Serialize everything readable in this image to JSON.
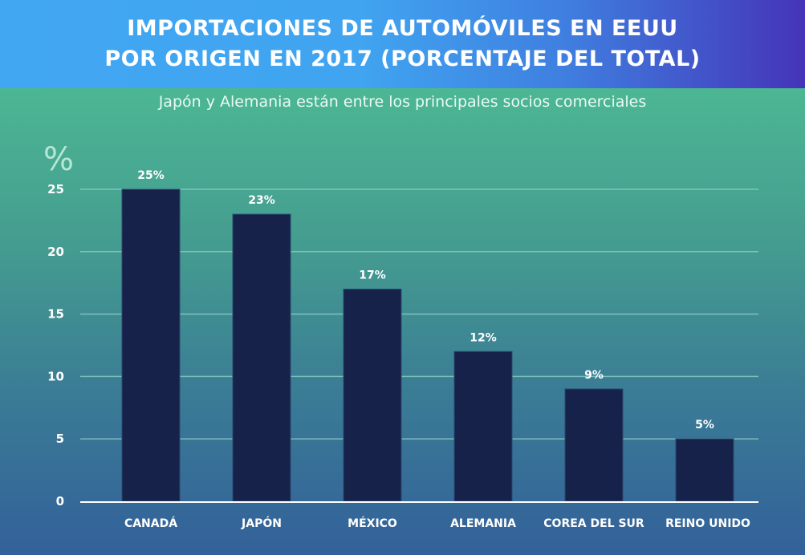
{
  "header": {
    "title_line1": "IMPORTACIONES DE AUTOMÓVILES EN EEUU",
    "title_line2": "POR ORIGEN EN 2017 (PORCENTAJE DEL TOTAL)"
  },
  "subtitle": "Japón y Alemania están entre los principales socios comerciales",
  "colors": {
    "bar": "#17224b",
    "gridline": "#8cc9c0",
    "axis": "#ffffff"
  },
  "chart_data": {
    "type": "bar",
    "title": "IMPORTACIONES DE AUTOMÓVILES EN EEUU POR ORIGEN EN 2017 (PORCENTAJE DEL TOTAL)",
    "subtitle": "Japón y Alemania están entre los principales socios comerciales",
    "xlabel": "",
    "ylabel": "%",
    "categories": [
      "CANADÁ",
      "JAPÓN",
      "MÉXICO",
      "ALEMANIA",
      "COREA DEL SUR",
      "REINO UNIDO"
    ],
    "values": [
      25,
      23,
      17,
      12,
      9,
      5
    ],
    "data_labels": [
      "25%",
      "23%",
      "17%",
      "12%",
      "9%",
      "5%"
    ],
    "ylim": [
      0,
      25
    ],
    "yticks": [
      0,
      5,
      10,
      15,
      20,
      25
    ],
    "grid": true,
    "legend": "none"
  }
}
